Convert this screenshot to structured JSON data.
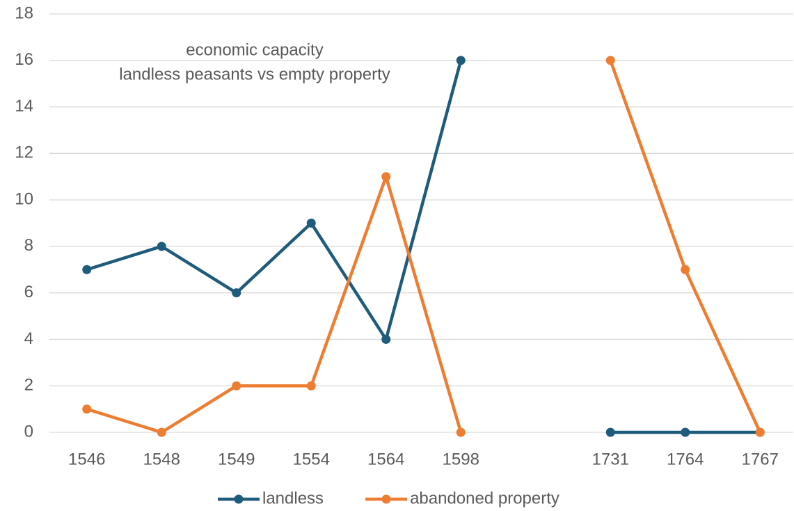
{
  "chart_data": {
    "type": "line",
    "title": "economic capacity",
    "subtitle": "landless peasants vs empty property",
    "categories": [
      "1546",
      "1548",
      "1549",
      "1554",
      "1564",
      "1598",
      null,
      "1731",
      "1764",
      "1767"
    ],
    "series": [
      {
        "name": "landless",
        "color": "#1f5b7b",
        "values": [
          7,
          8,
          6,
          9,
          4,
          16,
          null,
          0,
          0,
          0
        ]
      },
      {
        "name": "abandoned property",
        "color": "#ed7d31",
        "values": [
          1,
          0,
          2,
          2,
          11,
          0,
          null,
          16,
          7,
          0
        ]
      }
    ],
    "ylim": [
      0,
      18
    ],
    "yticks": [
      0,
      2,
      4,
      6,
      8,
      10,
      12,
      14,
      16,
      18
    ],
    "grid": true,
    "legend": "bottom"
  }
}
